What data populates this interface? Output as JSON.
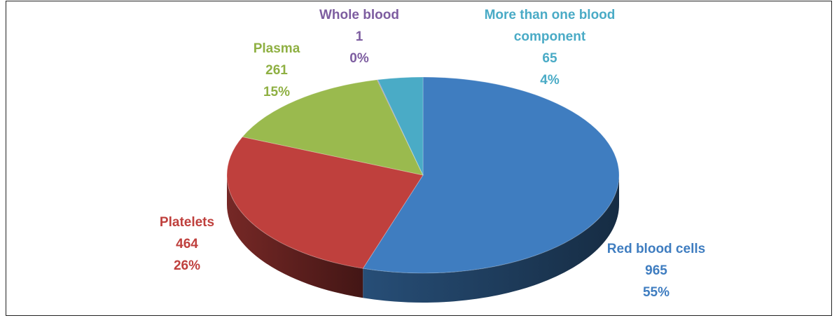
{
  "chart_data": {
    "type": "pie",
    "categories": [
      "Red blood cells",
      "Platelets",
      "Plasma",
      "Whole blood",
      "More than one blood component"
    ],
    "values": [
      965,
      464,
      261,
      1,
      65
    ],
    "percent_labels": [
      "55%",
      "26%",
      "15%",
      "0%",
      "4%"
    ],
    "colors": [
      "#3f7dc0",
      "#bf403d",
      "#9aba4e",
      "#7d5da0",
      "#4aabc6"
    ],
    "label_colors": [
      "#3f7dc0",
      "#bf403d",
      "#8fb043",
      "#7d5da0",
      "#4aabc6"
    ]
  }
}
